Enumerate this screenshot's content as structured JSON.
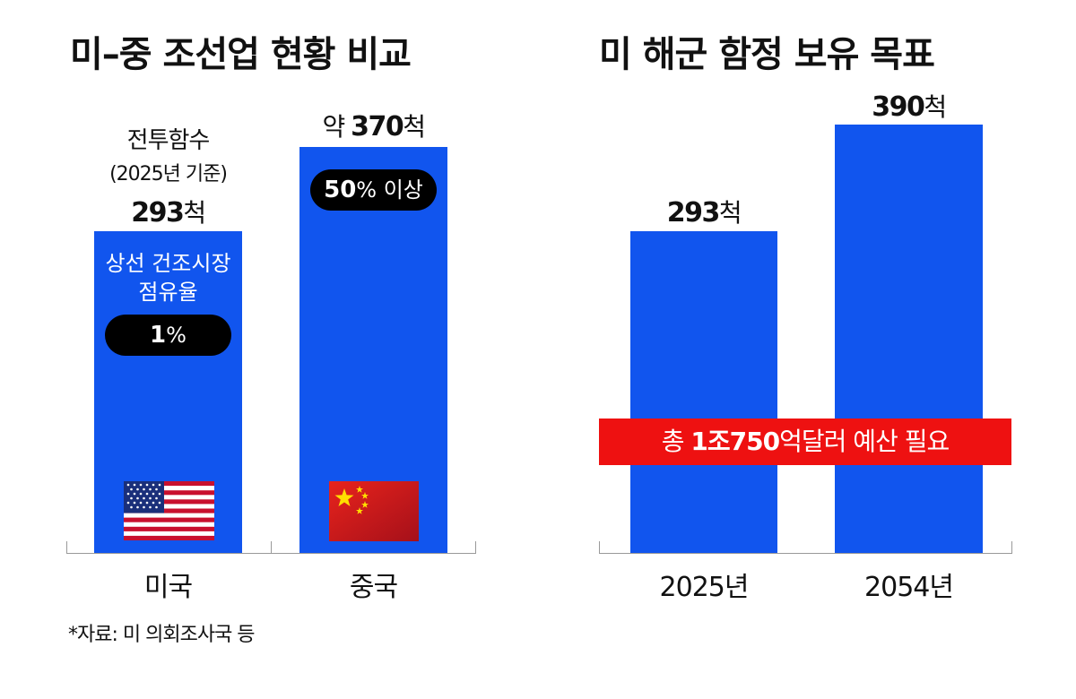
{
  "left": {
    "title": "미–중 조선업 현황 비교",
    "us_label_line1": "전투함수",
    "us_label_line2": "(2025년 기준)",
    "us_value": "293",
    "us_unit": "척",
    "us_note_line1": "상선 건조시장",
    "us_note_line2": "점유율",
    "us_share_num": "1",
    "us_share_unit": "%",
    "cn_prefix": "약 ",
    "cn_value": "370",
    "cn_unit": "척",
    "cn_share_num": "50",
    "cn_share_rest": "% 이상",
    "categories": [
      "미국",
      "중국"
    ],
    "source": "*자료: 미 의회조사국 등"
  },
  "right": {
    "title": "미 해군 함정 보유 목표",
    "value_2025": "293",
    "value_2054": "390",
    "unit": "척",
    "categories": [
      "2025년",
      "2054년"
    ],
    "banner_pre": "총 ",
    "banner_bold": "1조750",
    "banner_post": "억달러 예산 필요"
  },
  "colors": {
    "bar": "#1155ee",
    "banner": "#ee1111",
    "pill": "#000000"
  },
  "icons": [
    "us-flag-icon",
    "china-flag-icon"
  ],
  "chart_data": [
    {
      "type": "bar",
      "title": "미–중 조선업 현황 비교",
      "categories": [
        "미국",
        "중국"
      ],
      "values": [
        293,
        370
      ],
      "ylabel": "전투함수 (2025년 기준)",
      "annotations": {
        "상선 건조시장 점유율": [
          "1%",
          "50% 이상"
        ]
      }
    },
    {
      "type": "bar",
      "title": "미 해군 함정 보유 목표",
      "categories": [
        "2025년",
        "2054년"
      ],
      "values": [
        293,
        390
      ],
      "annotations": [
        "총 1조750억달러 예산 필요"
      ]
    }
  ]
}
